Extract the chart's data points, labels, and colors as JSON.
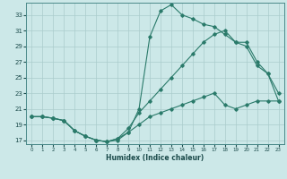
{
  "xlabel": "Humidex (Indice chaleur)",
  "bg_color": "#cce8e8",
  "grid_color": "#aacccc",
  "line_color": "#2a7a6a",
  "xlim": [
    -0.5,
    23.5
  ],
  "ylim": [
    16.5,
    34.5
  ],
  "xticks": [
    0,
    1,
    2,
    3,
    4,
    5,
    6,
    7,
    8,
    9,
    10,
    11,
    12,
    13,
    14,
    15,
    16,
    17,
    18,
    19,
    20,
    21,
    22,
    23
  ],
  "yticks": [
    17,
    19,
    21,
    23,
    25,
    27,
    29,
    31,
    33
  ],
  "series0_x": [
    0,
    1,
    2,
    3,
    4,
    5,
    6,
    7,
    8,
    9,
    10,
    11,
    12,
    13,
    14,
    15,
    16,
    17,
    18,
    19,
    20,
    21,
    22,
    23
  ],
  "series0_y": [
    20.0,
    20.0,
    19.8,
    19.5,
    18.2,
    17.5,
    17.0,
    16.8,
    17.0,
    18.0,
    21.0,
    30.2,
    33.5,
    34.3,
    33.0,
    32.5,
    31.8,
    31.5,
    30.5,
    29.5,
    29.5,
    27.0,
    25.5,
    22.0
  ],
  "series1_x": [
    0,
    1,
    2,
    3,
    4,
    5,
    6,
    7,
    8,
    9,
    10,
    11,
    12,
    13,
    14,
    15,
    16,
    17,
    18,
    19,
    20,
    21,
    22,
    23
  ],
  "series1_y": [
    20.0,
    20.0,
    19.8,
    19.5,
    18.2,
    17.5,
    17.0,
    16.8,
    17.2,
    18.5,
    20.5,
    22.0,
    23.5,
    25.0,
    26.5,
    28.0,
    29.5,
    30.5,
    31.0,
    29.5,
    29.0,
    26.5,
    25.5,
    23.0
  ],
  "series2_x": [
    0,
    1,
    2,
    3,
    4,
    5,
    6,
    7,
    8,
    9,
    10,
    11,
    12,
    13,
    14,
    15,
    16,
    17,
    18,
    19,
    20,
    21,
    22,
    23
  ],
  "series2_y": [
    20.0,
    20.0,
    19.8,
    19.5,
    18.2,
    17.5,
    17.0,
    16.8,
    17.2,
    18.0,
    19.0,
    20.0,
    20.5,
    21.0,
    21.5,
    22.0,
    22.5,
    23.0,
    21.5,
    21.0,
    21.5,
    22.0,
    22.0,
    22.0
  ]
}
